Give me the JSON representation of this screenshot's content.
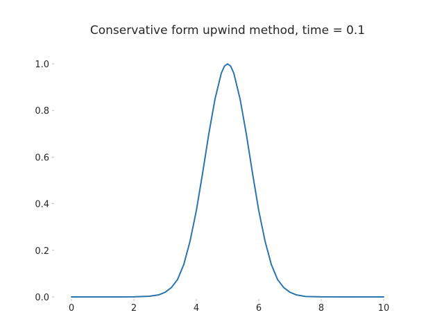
{
  "chart_data": {
    "type": "line",
    "title": "Conservative form upwind method, time = 0.1",
    "xlabel": "",
    "ylabel": "",
    "xlim": [
      0,
      10
    ],
    "ylim": [
      0,
      1.0
    ],
    "xticks": [
      "0",
      "2",
      "4",
      "6",
      "8",
      "10"
    ],
    "yticks": [
      "0.0",
      "0.2",
      "0.4",
      "0.6",
      "0.8",
      "1.0"
    ],
    "grid": false,
    "series": [
      {
        "color": "#2a74ad",
        "x": [
          0,
          0.5,
          1.0,
          1.5,
          2.0,
          2.5,
          2.8,
          3.0,
          3.2,
          3.4,
          3.6,
          3.8,
          4.0,
          4.2,
          4.4,
          4.6,
          4.8,
          4.9,
          5.0,
          5.1,
          5.2,
          5.4,
          5.6,
          5.8,
          6.0,
          6.2,
          6.4,
          6.6,
          6.8,
          7.0,
          7.2,
          7.5,
          8.0,
          9.0,
          10.0
        ],
        "y": [
          0,
          0,
          0,
          0,
          0.0005,
          0.003,
          0.009,
          0.02,
          0.04,
          0.075,
          0.14,
          0.24,
          0.37,
          0.53,
          0.7,
          0.85,
          0.96,
          0.99,
          1.0,
          0.99,
          0.96,
          0.85,
          0.7,
          0.53,
          0.37,
          0.24,
          0.14,
          0.075,
          0.04,
          0.02,
          0.009,
          0.002,
          0.0003,
          0,
          0
        ]
      }
    ]
  }
}
